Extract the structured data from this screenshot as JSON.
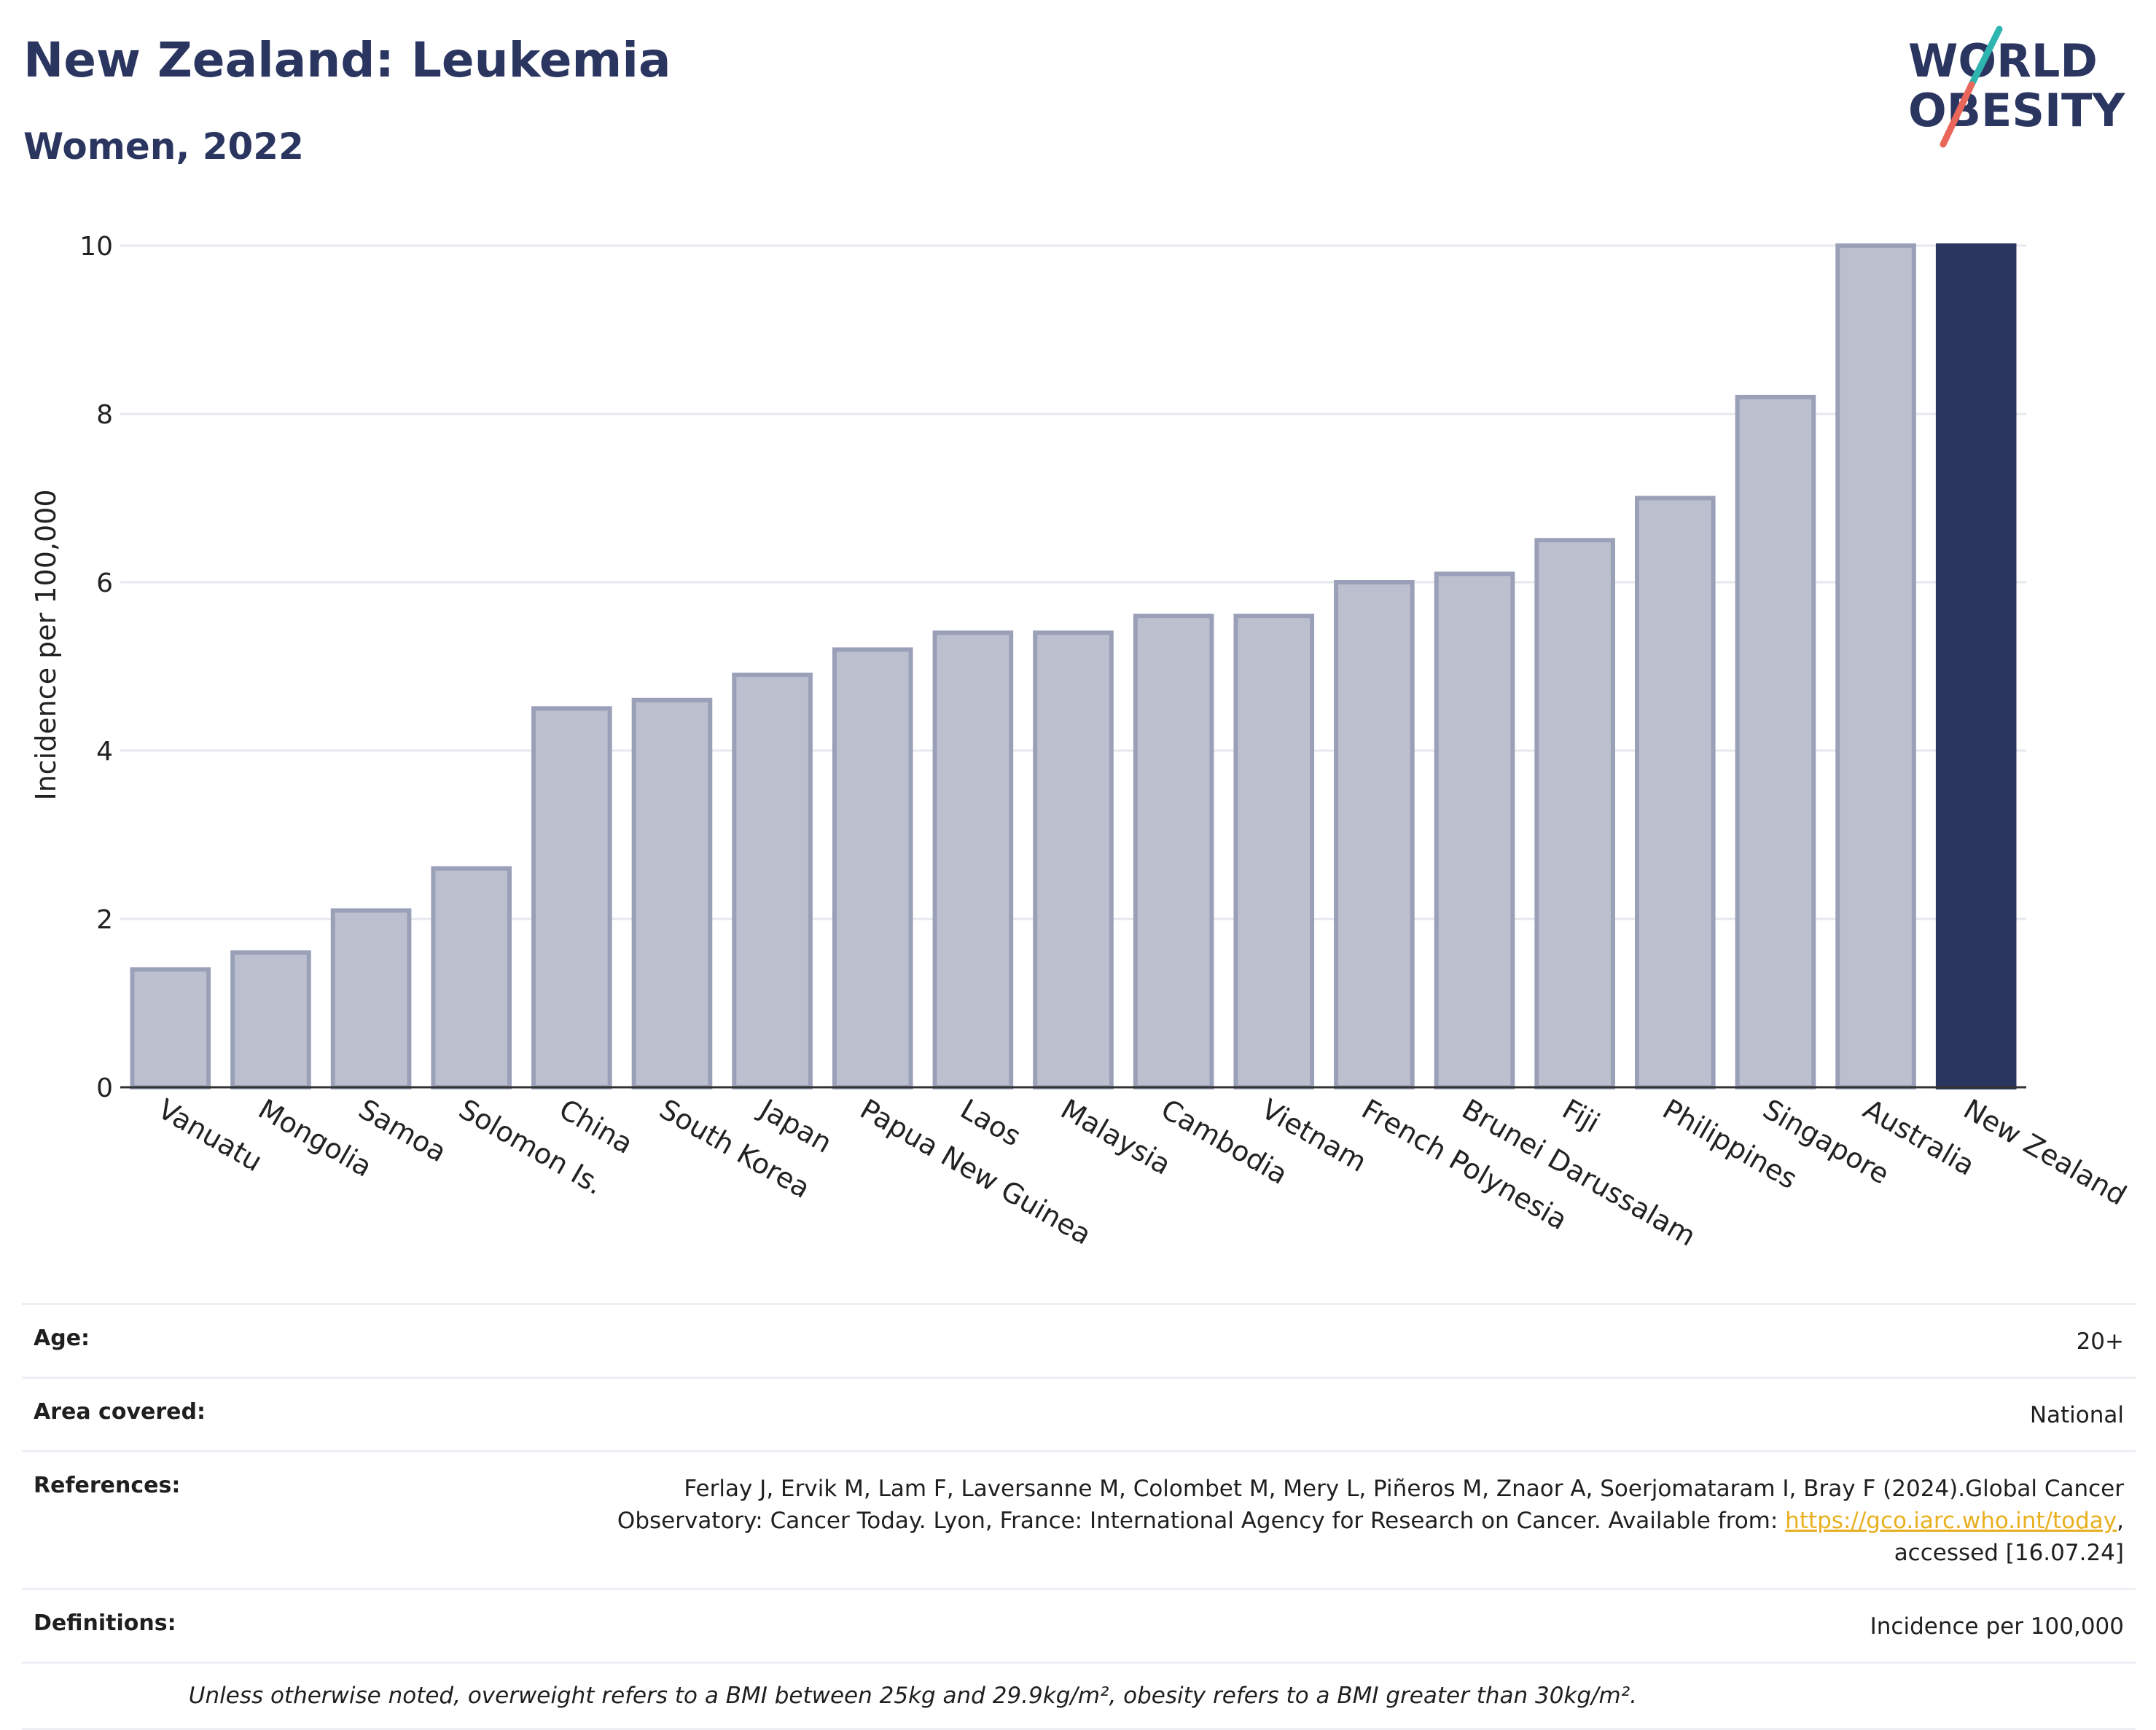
{
  "header": {
    "title": "New Zealand: Leukemia",
    "subtitle": "Women, 2022"
  },
  "logo": {
    "line1": "WORLD",
    "line2": "OBESITY",
    "colors": {
      "text": "#2a3560",
      "teal": "#2fb5b0",
      "coral": "#e8675a"
    }
  },
  "colors": {
    "bar_fill": "#bcc0ce",
    "bar_stroke": "#9aa0b8",
    "highlight": "#2a3560",
    "grid": "#e6e8ee",
    "axis": "#333333"
  },
  "chart_data": {
    "type": "bar",
    "ylabel": "Incidence per 100,000",
    "xlabel": "",
    "ylim": [
      0,
      10
    ],
    "yticks": [
      0,
      2,
      4,
      6,
      8,
      10
    ],
    "grid": true,
    "categories": [
      "Vanuatu",
      "Mongolia",
      "Samoa",
      "Solomon Is.",
      "China",
      "South Korea",
      "Japan",
      "Papua New Guinea",
      "Laos",
      "Malaysia",
      "Cambodia",
      "Vietnam",
      "French Polynesia",
      "Brunei Darussalam",
      "Fiji",
      "Philippines",
      "Singapore",
      "Australia",
      "New Zealand"
    ],
    "values": [
      1.4,
      1.6,
      2.1,
      2.6,
      4.5,
      4.6,
      4.9,
      5.2,
      5.4,
      5.4,
      5.6,
      5.6,
      6.0,
      6.1,
      6.5,
      7.0,
      8.2,
      10.0,
      10.0
    ],
    "highlight": "New Zealand"
  },
  "info": {
    "age": {
      "label": "Age:",
      "value": "20+"
    },
    "area": {
      "label": "Area covered:",
      "value": "National"
    },
    "references": {
      "label": "References:",
      "line1": "Ferlay J, Ervik M, Lam F, Laversanne M, Colombet M, Mery L, Piñeros M, Znaor A, Soerjomataram I, Bray F (2024).Global Cancer",
      "line2_pre": "Observatory: Cancer Today. Lyon, France: International Agency for Research on Cancer. Available from: ",
      "link": "https://gco.iarc.who.int/today",
      "line2_post": ",",
      "line3": "accessed [16.07.24]"
    },
    "definitions": {
      "label": "Definitions:",
      "value": "Incidence per 100,000"
    },
    "note": "Unless otherwise noted, overweight refers to a BMI between 25kg and 29.9kg/m², obesity refers to a BMI greater than 30kg/m²."
  }
}
